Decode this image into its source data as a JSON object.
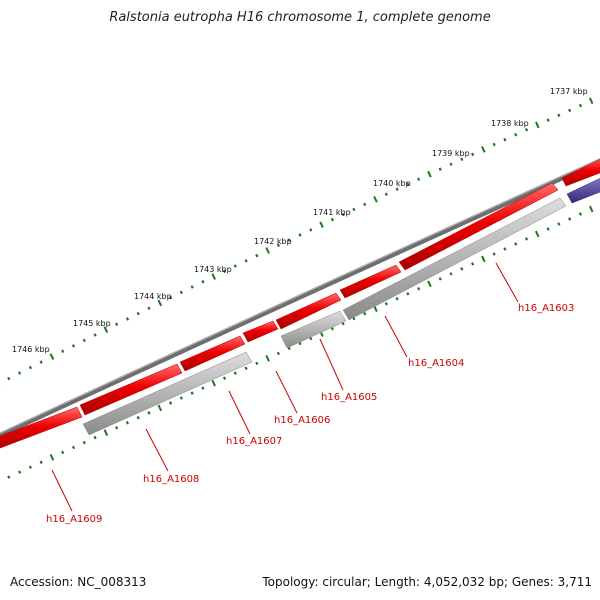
{
  "title": "Ralstonia eutropha H16 chromosome 1, complete genome",
  "footer": {
    "accession": "Accession: NC_008313",
    "summary": "Topology: circular; Length: 4,052,032 bp; Genes: 3,711"
  },
  "ruler": {
    "labels": [
      "1737 kbp",
      "1738 kbp",
      "1739 kbp",
      "1740 kbp",
      "1741 kbp",
      "1742 kbp",
      "1743 kbp",
      "1744 kbp",
      "1745 kbp",
      "1746 kbp"
    ]
  },
  "genes": [
    {
      "name": "h16_A1603"
    },
    {
      "name": "h16_A1604"
    },
    {
      "name": "h16_A1605"
    },
    {
      "name": "h16_A1606"
    },
    {
      "name": "h16_A1607"
    },
    {
      "name": "h16_A1608"
    },
    {
      "name": "h16_A1609"
    }
  ],
  "colors": {
    "forward_gene": "#e00000",
    "reverse_gene": "#aaaaaa",
    "other_gene": "#4a3a8a",
    "backbone": "#777777",
    "ticks": "#1a7a1a",
    "label": "#cc0000"
  }
}
